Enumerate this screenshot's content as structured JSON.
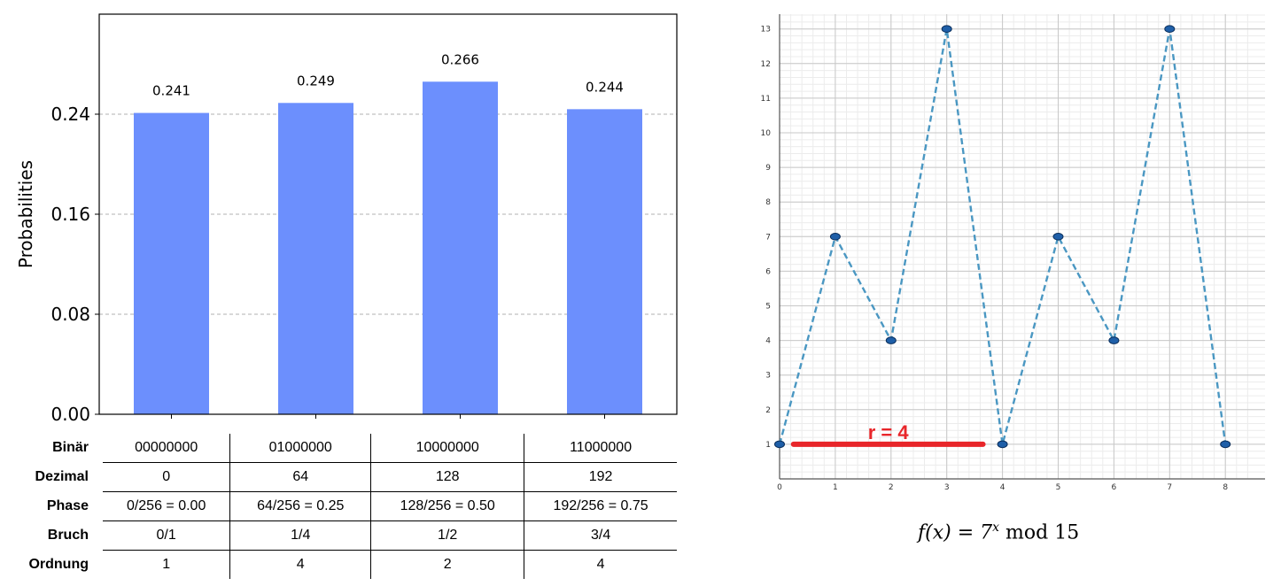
{
  "bar_chart": {
    "chart_data": {
      "type": "bar",
      "categories": [
        "00000000",
        "01000000",
        "10000000",
        "11000000"
      ],
      "values": [
        0.241,
        0.249,
        0.266,
        0.244
      ],
      "data_labels": [
        "0.241",
        "0.249",
        "0.266",
        "0.244"
      ],
      "ylabel": "Probabilities",
      "ylim": [
        0,
        0.32
      ],
      "yticks": [
        0.0,
        0.08,
        0.16,
        0.24
      ],
      "ytick_labels": [
        "0.00",
        "0.08",
        "0.16",
        "0.24"
      ],
      "grid": "horizontal dashed",
      "bar_color": "#6c8ffd"
    }
  },
  "table": {
    "rows": [
      {
        "header": "Binär",
        "cells": [
          "00000000",
          "01000000",
          "10000000",
          "11000000"
        ]
      },
      {
        "header": "Dezimal",
        "cells": [
          "0",
          "64",
          "128",
          "192"
        ]
      },
      {
        "header": "Phase",
        "cells": [
          "0/256 = 0.00",
          "64/256 = 0.25",
          "128/256 = 0.50",
          "192/256 = 0.75"
        ]
      },
      {
        "header": "Bruch",
        "cells": [
          "0/1",
          "1/4",
          "1/2",
          "3/4"
        ]
      },
      {
        "header": "Ordnung",
        "cells": [
          "1",
          "4",
          "2",
          "4"
        ]
      }
    ]
  },
  "line_chart": {
    "chart_data": {
      "type": "line",
      "x": [
        0,
        1,
        2,
        3,
        4,
        5,
        6,
        7,
        8
      ],
      "y": [
        1,
        7,
        4,
        13,
        1,
        7,
        4,
        13,
        1
      ],
      "xlim": [
        0,
        8.5
      ],
      "ylim": [
        0,
        13.4
      ],
      "xticks": [
        "0",
        "1",
        "2",
        "3",
        "4",
        "5",
        "6",
        "7",
        "8"
      ],
      "yticks": [
        "1",
        "2",
        "3",
        "4",
        "5",
        "6",
        "7",
        "8",
        "9",
        "10",
        "11",
        "12",
        "13"
      ],
      "line_style": "dashed",
      "line_color": "#4a97c2",
      "marker_color": "#1f5fa8",
      "grid": "major and minor",
      "annotation": {
        "text": "r = 4",
        "x_start": 0.25,
        "x_end": 3.65,
        "y": 1,
        "color": "#e8262a"
      }
    },
    "formula": {
      "lhs": "f(x) = 7",
      "exponent": "x",
      "rhs": " mod 15"
    }
  }
}
